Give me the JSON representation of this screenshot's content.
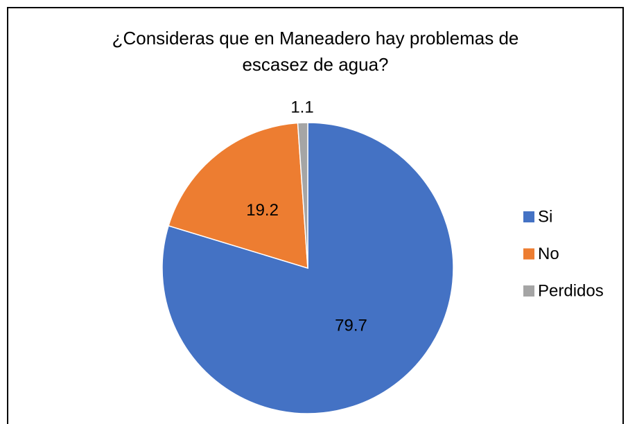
{
  "chart_data": {
    "type": "pie",
    "title": "¿Consideras que en Maneadero hay problemas de escasez de agua?",
    "categories": [
      "Si",
      "No",
      "Perdidos"
    ],
    "values": [
      79.7,
      19.2,
      1.1
    ],
    "colors": [
      "#4472c4",
      "#ed7d31",
      "#a5a5a5"
    ],
    "legend": "right"
  }
}
